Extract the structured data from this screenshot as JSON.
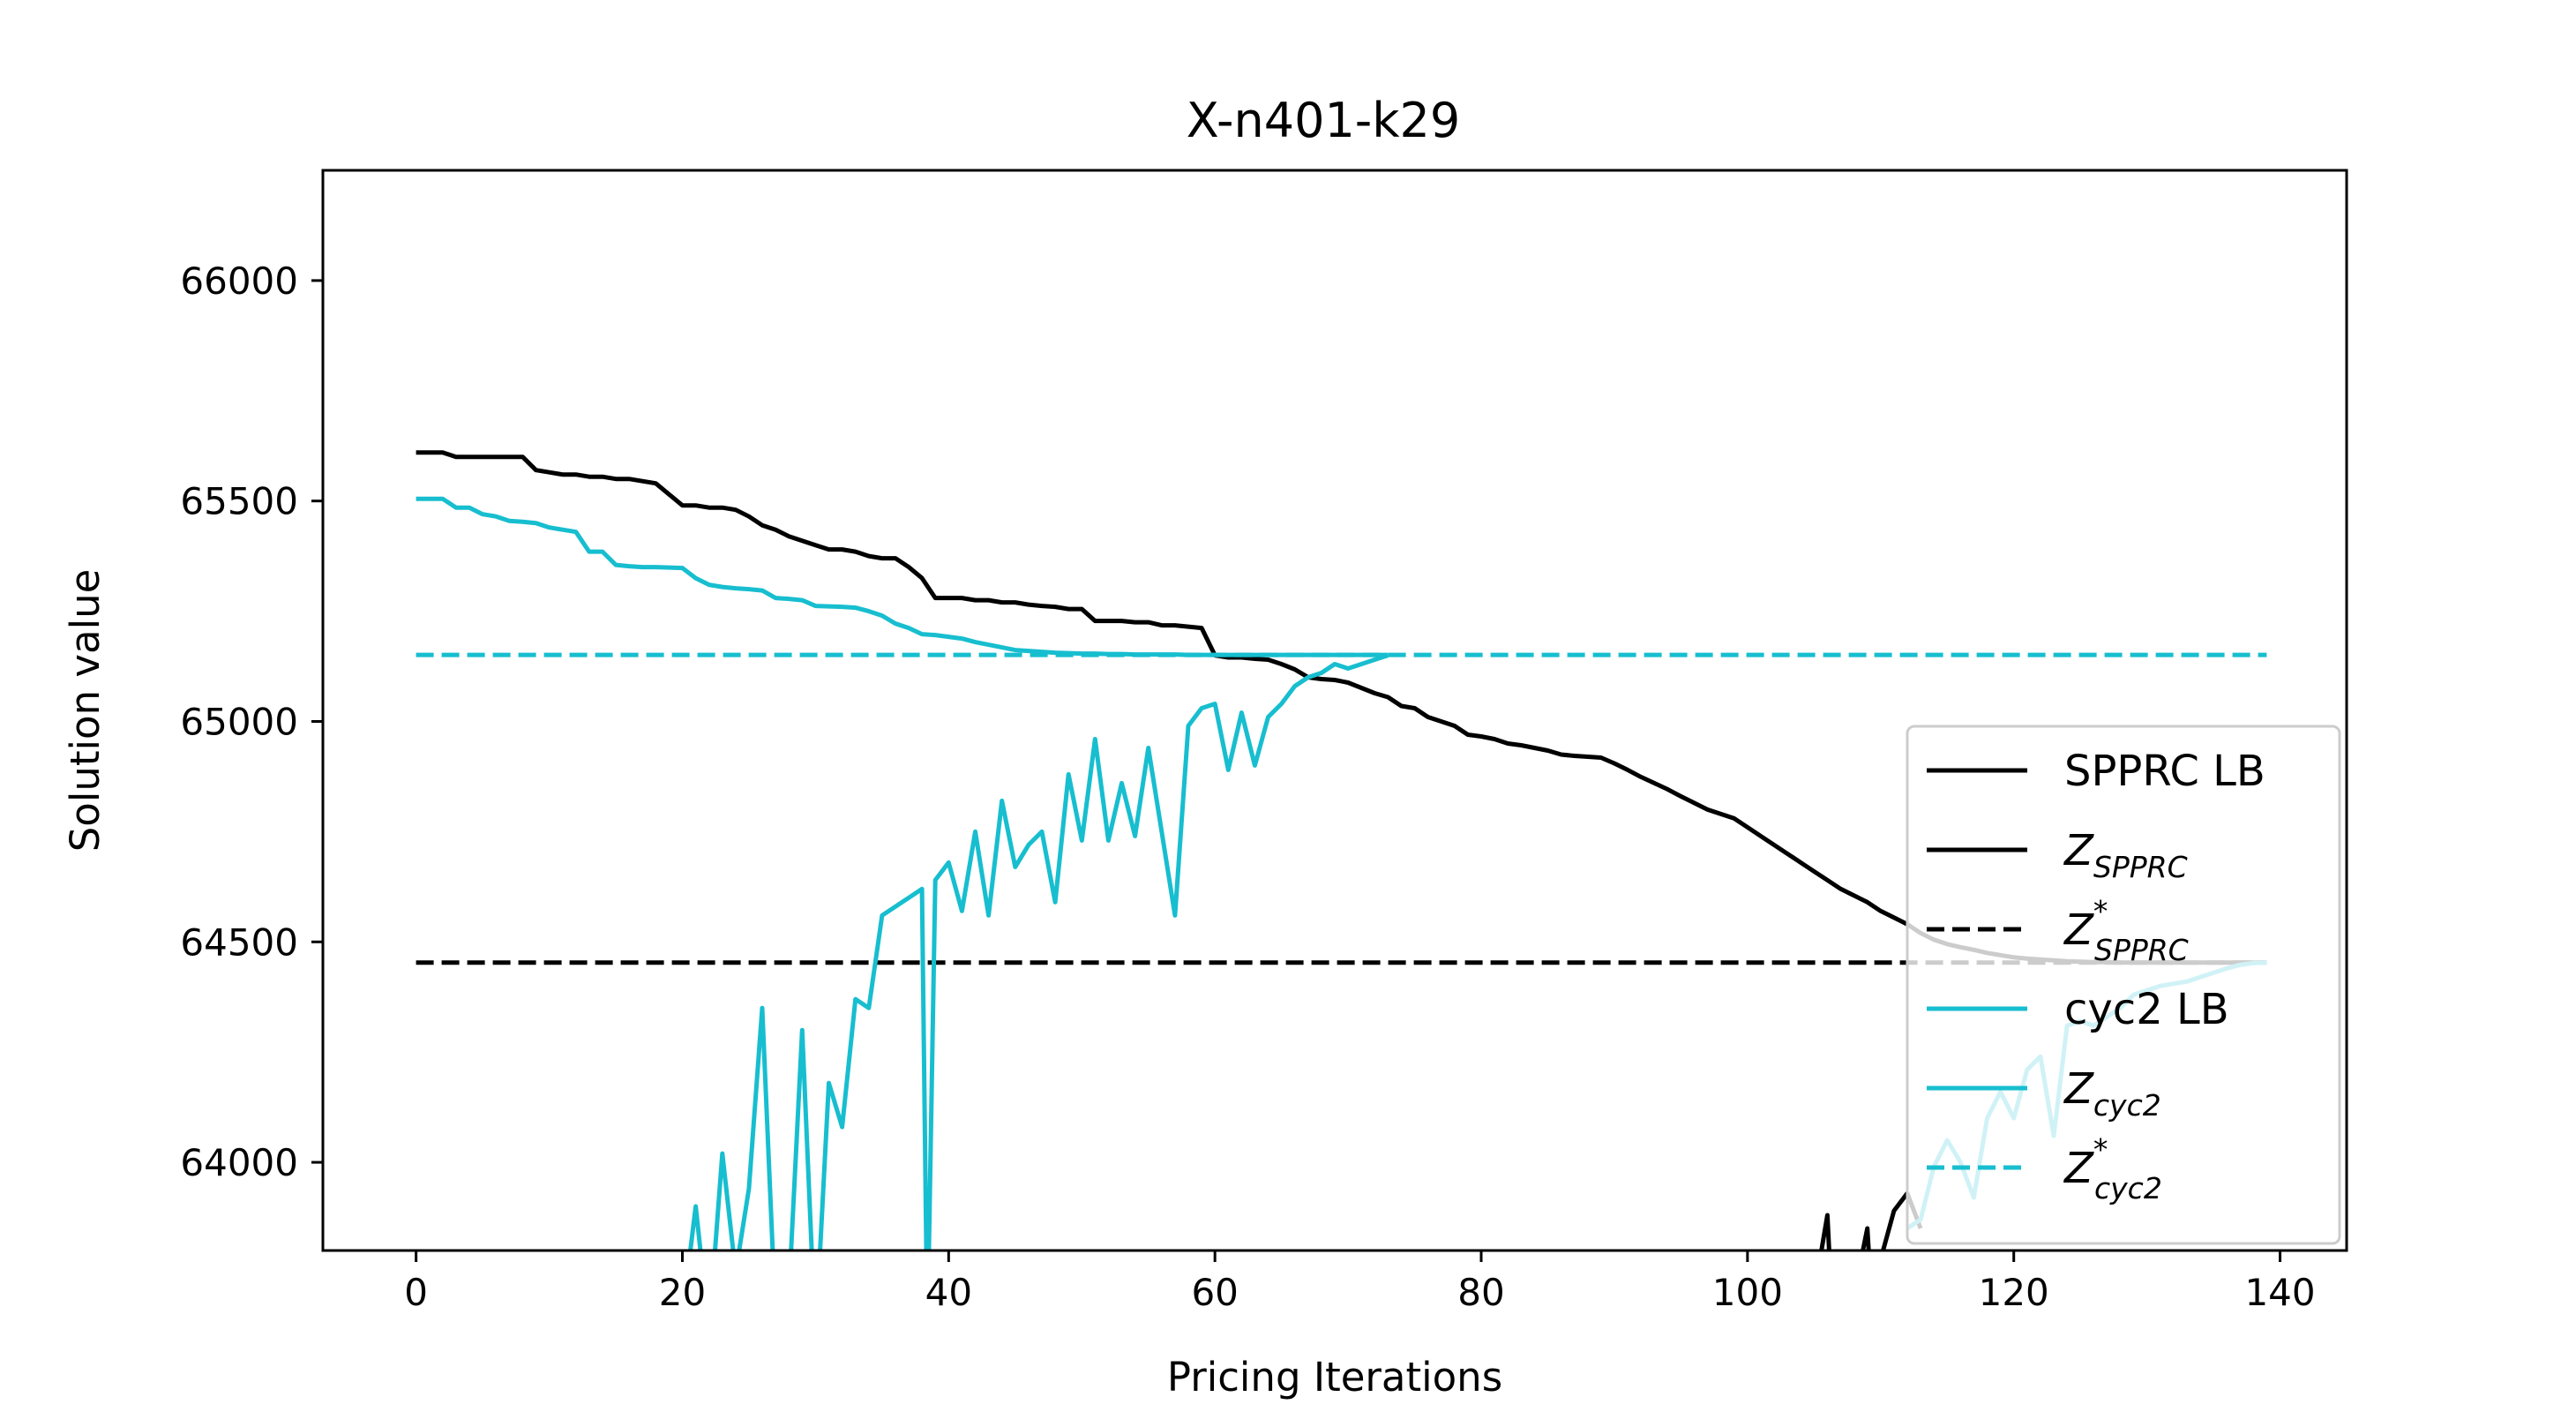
{
  "chart_data": {
    "type": "line",
    "title": "X-n401-k29",
    "xlabel": "Pricing Iterations",
    "ylabel": "Solution value",
    "xlim": [
      -7,
      145
    ],
    "ylim": [
      63800,
      66250
    ],
    "xticks": [
      0,
      20,
      40,
      60,
      80,
      100,
      120,
      140
    ],
    "yticks": [
      64000,
      64500,
      65000,
      65500,
      66000
    ],
    "legend_position": "lower-right",
    "grid": false,
    "series": [
      {
        "name": "SPPRC LB",
        "color": "#000000",
        "style": "solid",
        "x": [
          0,
          2,
          3,
          4,
          5,
          6,
          7,
          8,
          9,
          10,
          11,
          12,
          13,
          14,
          15,
          16,
          17,
          18,
          19,
          20,
          21,
          22,
          23,
          24,
          25,
          26,
          27,
          28,
          29,
          30,
          31,
          32,
          33,
          34,
          35,
          36,
          37,
          38,
          39,
          40,
          41,
          42,
          43,
          44,
          45,
          46,
          47,
          48,
          49,
          50,
          51,
          52,
          53,
          54,
          55,
          56,
          57,
          58,
          59,
          60,
          61,
          62,
          63,
          64,
          65,
          66,
          67,
          68,
          69,
          70,
          71,
          72,
          73,
          74,
          75,
          76,
          77,
          78,
          79,
          80,
          81,
          82,
          83,
          84,
          85,
          86,
          87,
          88,
          89,
          90,
          91,
          92,
          93,
          94,
          95,
          96,
          97,
          98,
          99,
          100,
          101,
          102,
          103,
          104,
          105,
          106,
          107,
          108,
          109,
          110,
          111,
          112,
          113,
          114,
          115,
          116,
          117,
          118,
          119,
          120,
          121,
          122,
          123,
          124,
          125,
          126,
          127,
          128,
          129,
          130,
          131,
          132,
          133,
          134,
          135,
          136,
          137,
          138,
          139
        ],
        "y": [
          65610,
          65610,
          65600,
          65600,
          65600,
          65600,
          65600,
          65600,
          65570,
          65565,
          65560,
          65560,
          65555,
          65555,
          65550,
          65550,
          65545,
          65540,
          65515,
          65490,
          65490,
          65485,
          65485,
          65480,
          65465,
          65445,
          65435,
          65420,
          65410,
          65400,
          65390,
          65390,
          65385,
          65375,
          65370,
          65370,
          65350,
          65325,
          65280,
          65280,
          65280,
          65275,
          65275,
          65270,
          65270,
          65265,
          65262,
          65260,
          65255,
          65255,
          65228,
          65228,
          65228,
          65225,
          65225,
          65218,
          65218,
          65215,
          65212,
          65150,
          65145,
          65145,
          65142,
          65140,
          65130,
          65118,
          65100,
          65096,
          65094,
          65088,
          65076,
          65064,
          65055,
          65035,
          65030,
          65010,
          65000,
          64990,
          64970,
          64966,
          64960,
          64950,
          64946,
          64940,
          64934,
          64925,
          64922,
          64920,
          64918,
          64905,
          64890,
          64874,
          64860,
          64846,
          64830,
          64815,
          64800,
          64790,
          64780,
          64760,
          64740,
          64720,
          64700,
          64680,
          64660,
          64640,
          64620,
          64605,
          64590,
          64570,
          64555,
          64540,
          64520,
          64505,
          64495,
          64488,
          64482,
          64475,
          64470,
          64465,
          64462,
          64460,
          64458,
          64456,
          64455,
          64454,
          64454,
          64453,
          64453,
          64453,
          64453,
          64453,
          64453,
          64453,
          64453,
          64453,
          64453,
          64453,
          64453
        ]
      },
      {
        "name": "Z_SPPRC",
        "color": "#000000",
        "style": "solid",
        "x": [
          104,
          105,
          106,
          106.3,
          107,
          108,
          109,
          109.3,
          110,
          111,
          112,
          113
        ],
        "y": [
          63650,
          63700,
          63880,
          63700,
          63650,
          63700,
          63850,
          63700,
          63780,
          63890,
          63930,
          63850
        ]
      },
      {
        "name": "Z*_SPPRC",
        "color": "#000000",
        "style": "dashed",
        "x": [
          0,
          139
        ],
        "y": [
          64453,
          64453
        ]
      },
      {
        "name": "cyc2 LB",
        "color": "#17becf",
        "style": "solid",
        "x": [
          0,
          1,
          2,
          3,
          4,
          5,
          6,
          7,
          8,
          9,
          10,
          11,
          12,
          13,
          14,
          15,
          16,
          17,
          18,
          19,
          20,
          21,
          22,
          23,
          24,
          25,
          26,
          27,
          28,
          29,
          30,
          31,
          32,
          33,
          34,
          35,
          36,
          37,
          38,
          39,
          40,
          41,
          42,
          43,
          44,
          45,
          46,
          47,
          48,
          49,
          50,
          51,
          52,
          53,
          54,
          55,
          56,
          57,
          58,
          59,
          60,
          61,
          62,
          63,
          64,
          65,
          66,
          67,
          68,
          69,
          70,
          71,
          72,
          73
        ],
        "y": [
          65505,
          65505,
          65505,
          65485,
          65485,
          65470,
          65465,
          65455,
          65453,
          65450,
          65440,
          65435,
          65430,
          65385,
          65385,
          65355,
          65352,
          65350,
          65350,
          65349,
          65348,
          65325,
          65310,
          65305,
          65302,
          65300,
          65297,
          65280,
          65278,
          65275,
          65262,
          65261,
          65260,
          65258,
          65250,
          65240,
          65222,
          65212,
          65198,
          65196,
          65192,
          65188,
          65180,
          65174,
          65168,
          65162,
          65160,
          65158,
          65156,
          65155,
          65154,
          65154,
          65153,
          65153,
          65152,
          65152,
          65152,
          65152,
          65151,
          65151,
          65151,
          65151,
          65151,
          65151,
          65151,
          65151,
          65151,
          65151,
          65151,
          65151,
          65151,
          65151,
          65151,
          65151
        ]
      },
      {
        "name": "Z_cyc2",
        "color": "#17becf",
        "style": "solid",
        "x": [
          20,
          21,
          22,
          23,
          24,
          25,
          26,
          27,
          28,
          29,
          30,
          31,
          32,
          33,
          34,
          35,
          36,
          37,
          38,
          38.4,
          39,
          40,
          41,
          42,
          43,
          44,
          45,
          46,
          47,
          48,
          49,
          50,
          51,
          52,
          53,
          54,
          55,
          56,
          57,
          58,
          59,
          60,
          61,
          62,
          63,
          64,
          65,
          66,
          67,
          68,
          69,
          70,
          71,
          72,
          73
        ],
        "y": [
          63650,
          63900,
          63620,
          64020,
          63750,
          63940,
          64350,
          63650,
          63700,
          64300,
          63600,
          64180,
          64080,
          64370,
          64350,
          64560,
          64580,
          64600,
          64620,
          63600,
          64640,
          64680,
          64570,
          64750,
          64560,
          64820,
          64670,
          64720,
          64750,
          64590,
          64880,
          64730,
          64960,
          64730,
          64860,
          64740,
          64940,
          64750,
          64560,
          64990,
          65030,
          65040,
          64890,
          65020,
          64900,
          65010,
          65040,
          65080,
          65100,
          65110,
          65130,
          65120,
          65130,
          65140,
          65150
        ]
      },
      {
        "name": "Z_cyc2_tail",
        "color": "#17becf",
        "style": "solid",
        "x": [
          112,
          113,
          114,
          115,
          116,
          117,
          118,
          119,
          120,
          121,
          122,
          123,
          124,
          125,
          126,
          127,
          128,
          129,
          130,
          131,
          132,
          133,
          134,
          135,
          136,
          137,
          138,
          139
        ],
        "y": [
          63850,
          63870,
          63990,
          64050,
          64000,
          63920,
          64100,
          64160,
          64100,
          64210,
          64240,
          64060,
          64310,
          64320,
          64310,
          64330,
          64350,
          64380,
          64390,
          64400,
          64405,
          64410,
          64420,
          64430,
          64440,
          64448,
          64452,
          64453
        ]
      },
      {
        "name": "Z*_cyc2",
        "color": "#17becf",
        "style": "dashed",
        "x": [
          0,
          139
        ],
        "y": [
          65151,
          65151
        ]
      }
    ]
  },
  "legend": {
    "items": [
      {
        "main": "SPPRC LB",
        "sub": "",
        "sup": "",
        "italic": false,
        "color": "#000000",
        "style": "solid"
      },
      {
        "main": "Z",
        "sub": "SPPRC",
        "sup": "",
        "italic": true,
        "color": "#000000",
        "style": "solid"
      },
      {
        "main": "Z",
        "sub": "SPPRC",
        "sup": "*",
        "italic": true,
        "color": "#000000",
        "style": "dashed"
      },
      {
        "main": "cyc2 LB",
        "sub": "",
        "sup": "",
        "italic": false,
        "color": "#17becf",
        "style": "solid"
      },
      {
        "main": "Z",
        "sub": "cyc2",
        "sup": "",
        "italic": true,
        "color": "#17becf",
        "style": "solid"
      },
      {
        "main": "Z",
        "sub": "cyc2",
        "sup": "*",
        "italic": true,
        "color": "#17becf",
        "style": "dashed"
      }
    ]
  }
}
